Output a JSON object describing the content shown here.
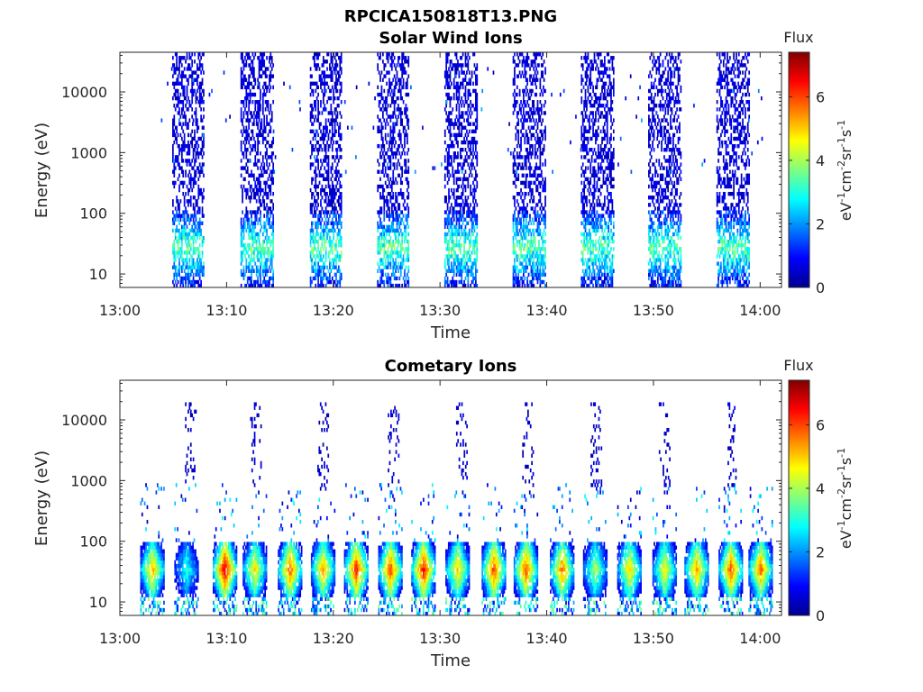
{
  "figure": {
    "title": "RPCICA150818T13.PNG"
  },
  "colormap": {
    "name": "jet",
    "stops": [
      "#00008f",
      "#0000ff",
      "#00ffff",
      "#ffff00",
      "#ff0000",
      "#800000"
    ]
  },
  "chart_data": [
    {
      "type": "heatmap",
      "panel_id": "solar",
      "title": "Solar Wind Ions",
      "xlabel": "Time",
      "ylabel": "Energy (eV)",
      "y_scale": "log",
      "x_range_minutes": [
        0,
        62
      ],
      "ylim_eV": [
        6,
        45000
      ],
      "x_tick_labels": [
        "13:00",
        "13:10",
        "13:20",
        "13:30",
        "13:40",
        "13:50",
        "14:00"
      ],
      "x_tick_minutes": [
        0,
        10,
        20,
        30,
        40,
        50,
        60
      ],
      "y_tick_labels": [
        "10",
        "100",
        "1000",
        "10000"
      ],
      "y_tick_values": [
        10,
        100,
        1000,
        10000
      ],
      "colorbar": {
        "title": "Flux",
        "label": "eV-1cm-2sr-1s-1",
        "ticks": [
          "0",
          "2",
          "4",
          "6"
        ],
        "range": [
          0,
          7.4
        ]
      },
      "bursts_center_minutes": [
        6.4,
        12.8,
        19.3,
        25.6,
        31.9,
        38.3,
        44.7,
        51.0,
        57.4
      ],
      "burst_width_minutes": 3.0,
      "scattered_energy_range_eV": [
        100,
        40000
      ],
      "peak_flux_energy_eV": 25,
      "peak_flux": 4.2
    },
    {
      "type": "heatmap",
      "panel_id": "comet",
      "title": "Cometary Ions",
      "xlabel": "Time",
      "ylabel": "Energy (eV)",
      "y_scale": "log",
      "x_range_minutes": [
        0,
        62
      ],
      "ylim_eV": [
        6,
        45000
      ],
      "x_tick_labels": [
        "13:00",
        "13:10",
        "13:20",
        "13:30",
        "13:40",
        "13:50",
        "14:00"
      ],
      "x_tick_minutes": [
        0,
        10,
        20,
        30,
        40,
        50,
        60
      ],
      "y_tick_labels": [
        "10",
        "100",
        "1000",
        "10000"
      ],
      "y_tick_values": [
        10,
        100,
        1000,
        10000
      ],
      "colorbar": {
        "title": "Flux",
        "label": "eV-1cm-2sr-1s-1",
        "ticks": [
          "0",
          "2",
          "4",
          "6"
        ],
        "range": [
          0,
          7.4
        ]
      },
      "blobs_center_minutes": [
        3.0,
        6.2,
        9.8,
        12.6,
        15.9,
        19.0,
        22.1,
        25.3,
        28.4,
        31.6,
        35.0,
        38.0,
        41.4,
        44.5,
        47.7,
        51.0,
        54.0,
        57.2,
        60.0
      ],
      "blob_peak_flux": [
        5.8,
        3.6,
        7.3,
        5.4,
        6.4,
        5.8,
        6.8,
        6.6,
        7.0,
        5.6,
        6.6,
        6.5,
        6.2,
        4.6,
        5.6,
        5.3,
        6.0,
        6.5,
        6.3
      ],
      "blob_energy_range_eV": [
        12,
        90
      ],
      "sparse_high_energy_columns_minutes": [
        6.6,
        12.7,
        19.0,
        25.6,
        32.0,
        38.2,
        44.6,
        51.0,
        57.2
      ]
    }
  ]
}
